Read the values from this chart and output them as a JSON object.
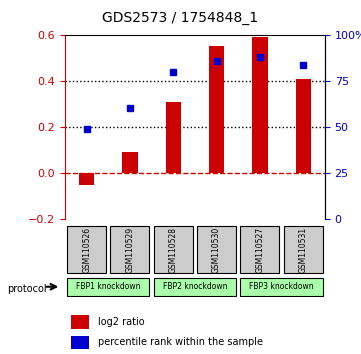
{
  "title": "GDS2573 / 1754848_1",
  "samples": [
    "GSM110526",
    "GSM110529",
    "GSM110528",
    "GSM110530",
    "GSM110527",
    "GSM110531"
  ],
  "log2_ratio": [
    -0.05,
    0.095,
    0.31,
    0.555,
    0.595,
    0.41
  ],
  "percentile_rank": [
    0.195,
    0.285,
    0.44,
    0.49,
    0.505,
    0.47
  ],
  "left_ylim": [
    -0.2,
    0.6
  ],
  "left_yticks": [
    -0.2,
    0.0,
    0.2,
    0.4,
    0.6
  ],
  "right_ylim": [
    0,
    100
  ],
  "right_yticks": [
    0,
    25,
    50,
    75,
    100
  ],
  "right_yticklabels": [
    "0",
    "25",
    "50",
    "75",
    "100%"
  ],
  "bar_color": "#cc0000",
  "dot_color": "#0000cc",
  "zero_line_color": "#cc0000",
  "dotted_line_color": "#000000",
  "protocols": [
    {
      "label": "FBP1 knockdown",
      "samples": [
        0,
        1
      ],
      "color": "#aaffaa"
    },
    {
      "label": "FBP2 knockdown",
      "samples": [
        2,
        3
      ],
      "color": "#aaffaa"
    },
    {
      "label": "FBP3 knockdown",
      "samples": [
        4,
        5
      ],
      "color": "#aaffaa"
    }
  ],
  "protocol_label": "protocol",
  "legend_bar_label": "log2 ratio",
  "legend_dot_label": "percentile rank within the sample",
  "grid_dotted_values": [
    0.2,
    0.4
  ],
  "background_color": "#ffffff",
  "plot_bg_color": "#ffffff",
  "sample_box_color": "#cccccc"
}
